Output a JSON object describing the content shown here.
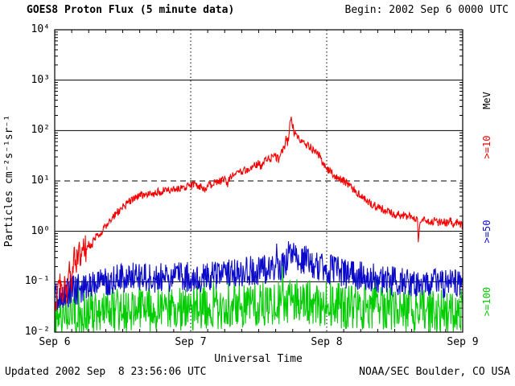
{
  "header": {
    "title": "GOES8 Proton Flux (5 minute data)",
    "begin_label": "Begin: 2002 Sep 6 0000 UTC"
  },
  "axes": {
    "y_label": "Particles cm⁻²s⁻¹sr⁻¹",
    "x_label": "Universal Time",
    "right_unit": "MeV",
    "y_ticks": [
      "10⁴",
      "10³",
      "10²",
      "10¹",
      "10⁰",
      "10⁻¹",
      "10⁻²"
    ],
    "x_ticks": [
      "Sep 6",
      "Sep 7",
      "Sep 8",
      "Sep 9"
    ]
  },
  "right_labels": [
    {
      "text": ">=10",
      "color": "#f40000"
    },
    {
      "text": ">=50",
      "color": "#0a0ac8"
    },
    {
      "text": ">=100",
      "color": "#00cc00"
    }
  ],
  "footer": {
    "updated": "Updated 2002 Sep  8 23:56:06 UTC",
    "credit": "NOAA/SEC Boulder, CO USA"
  },
  "chart_data": {
    "type": "line",
    "title": "GOES8 Proton Flux (5 minute data)",
    "xlabel": "Universal Time",
    "ylabel": "Particles cm⁻²s⁻¹sr⁻¹",
    "y_scale": "log",
    "ylim": [
      0.01,
      10000
    ],
    "x_range_hours": [
      0,
      72
    ],
    "x_start_label": "2002 Sep 6 0000 UTC",
    "x_tick_labels": [
      "Sep 6",
      "Sep 7",
      "Sep 8",
      "Sep 9"
    ],
    "x_minor_tick_hours": 3,
    "sample_minutes": 5,
    "threshold_line": 10,
    "grid": "solid horizontal line each decade, dashed line at 10, dotted vertical lines at day boundaries",
    "legend_position": "right, rotated 90deg",
    "series": [
      {
        "id": "ge10",
        "name": ">=10 MeV",
        "color": "#f40000",
        "noise": 0.08,
        "noise_early": 0.28,
        "noise_early_until": 5.5,
        "spike": 0,
        "anchors": [
          [
            0,
            0.03
          ],
          [
            0.5,
            0.05
          ],
          [
            1,
            0.09
          ],
          [
            1.4,
            0.04
          ],
          [
            1.8,
            0.12
          ],
          [
            2.2,
            0.06
          ],
          [
            2.6,
            0.25
          ],
          [
            3,
            0.12
          ],
          [
            3.4,
            0.35
          ],
          [
            3.8,
            0.2
          ],
          [
            4.2,
            0.45
          ],
          [
            4.6,
            0.3
          ],
          [
            5,
            0.55
          ],
          [
            5.5,
            0.45
          ],
          [
            6,
            0.6
          ],
          [
            6.5,
            0.5
          ],
          [
            7,
            0.7
          ],
          [
            8,
            0.9
          ],
          [
            9,
            1.3
          ],
          [
            10,
            1.8
          ],
          [
            11,
            2.4
          ],
          [
            12,
            3
          ],
          [
            13,
            3.8
          ],
          [
            14,
            4.5
          ],
          [
            15,
            5
          ],
          [
            16,
            5.5
          ],
          [
            17,
            5.2
          ],
          [
            18,
            6
          ],
          [
            19,
            6.2
          ],
          [
            20,
            6.5
          ],
          [
            21,
            7
          ],
          [
            22,
            7.4
          ],
          [
            23,
            7.8
          ],
          [
            24,
            8
          ],
          [
            25,
            8.2
          ],
          [
            26,
            7.8
          ],
          [
            26.5,
            6.5
          ],
          [
            27,
            8
          ],
          [
            28,
            9
          ],
          [
            29,
            9.5
          ],
          [
            30,
            11
          ],
          [
            30.5,
            9
          ],
          [
            31,
            12
          ],
          [
            32,
            13
          ],
          [
            33,
            16
          ],
          [
            34,
            17
          ],
          [
            35,
            19
          ],
          [
            36,
            22
          ],
          [
            36.5,
            19
          ],
          [
            37,
            24
          ],
          [
            38,
            28
          ],
          [
            39,
            30
          ],
          [
            39.5,
            27
          ],
          [
            40,
            35
          ],
          [
            40.5,
            45
          ],
          [
            40.8,
            70
          ],
          [
            41.1,
            55
          ],
          [
            41.4,
            100
          ],
          [
            41.7,
            200
          ],
          [
            42,
            130
          ],
          [
            42.3,
            85
          ],
          [
            42.6,
            95
          ],
          [
            43,
            70
          ],
          [
            43.5,
            62
          ],
          [
            44,
            55
          ],
          [
            44.5,
            52
          ],
          [
            45,
            48
          ],
          [
            45.5,
            42
          ],
          [
            46,
            40
          ],
          [
            46.5,
            35
          ],
          [
            47,
            28
          ],
          [
            47.5,
            22
          ],
          [
            48,
            17
          ],
          [
            49,
            14
          ],
          [
            50,
            12
          ],
          [
            51,
            10
          ],
          [
            52,
            8
          ],
          [
            53,
            6.5
          ],
          [
            54,
            5
          ],
          [
            55,
            4
          ],
          [
            56,
            3.4
          ],
          [
            57,
            3
          ],
          [
            58,
            2.7
          ],
          [
            59,
            2.4
          ],
          [
            60,
            2.2
          ],
          [
            61,
            2.1
          ],
          [
            62,
            2
          ],
          [
            63,
            1.9
          ],
          [
            64,
            1.8
          ],
          [
            64.2,
            0.55
          ],
          [
            64.5,
            1.7
          ],
          [
            65,
            1.8
          ],
          [
            66,
            1.6
          ],
          [
            67,
            1.6
          ],
          [
            68,
            1.5
          ],
          [
            69,
            1.5
          ],
          [
            70,
            1.6
          ],
          [
            70.5,
            1.2
          ],
          [
            71,
            1.5
          ],
          [
            72,
            1.3
          ]
        ]
      },
      {
        "id": "ge50",
        "name": ">=50 MeV",
        "color": "#0a0ac8",
        "noise": 0.3,
        "spike": 0.3,
        "anchors": [
          [
            0,
            0.05
          ],
          [
            1,
            0.05
          ],
          [
            2,
            0.06
          ],
          [
            3,
            0.065
          ],
          [
            4,
            0.07
          ],
          [
            5,
            0.08
          ],
          [
            6,
            0.09
          ],
          [
            8,
            0.1
          ],
          [
            10,
            0.11
          ],
          [
            12,
            0.12
          ],
          [
            14,
            0.12
          ],
          [
            16,
            0.12
          ],
          [
            18,
            0.12
          ],
          [
            20,
            0.12
          ],
          [
            22,
            0.13
          ],
          [
            24,
            0.12
          ],
          [
            26,
            0.12
          ],
          [
            28,
            0.13
          ],
          [
            30,
            0.14
          ],
          [
            32,
            0.15
          ],
          [
            34,
            0.16
          ],
          [
            36,
            0.17
          ],
          [
            38,
            0.18
          ],
          [
            40,
            0.2
          ],
          [
            41,
            0.25
          ],
          [
            41.7,
            0.38
          ],
          [
            42,
            0.42
          ],
          [
            42.5,
            0.35
          ],
          [
            43,
            0.3
          ],
          [
            44,
            0.28
          ],
          [
            45,
            0.25
          ],
          [
            46,
            0.22
          ],
          [
            47,
            0.2
          ],
          [
            48,
            0.18
          ],
          [
            50,
            0.16
          ],
          [
            52,
            0.14
          ],
          [
            54,
            0.13
          ],
          [
            56,
            0.12
          ],
          [
            58,
            0.11
          ],
          [
            60,
            0.1
          ],
          [
            62,
            0.1
          ],
          [
            64,
            0.09
          ],
          [
            66,
            0.09
          ],
          [
            68,
            0.09
          ],
          [
            70,
            0.09
          ],
          [
            72,
            0.1
          ]
        ]
      },
      {
        "id": "ge100",
        "name": ">=100 MeV",
        "color": "#00cc00",
        "noise": 0.45,
        "spike": 0.35,
        "anchors": [
          [
            0,
            0.022
          ],
          [
            4,
            0.024
          ],
          [
            8,
            0.026
          ],
          [
            12,
            0.028
          ],
          [
            16,
            0.028
          ],
          [
            20,
            0.03
          ],
          [
            24,
            0.03
          ],
          [
            28,
            0.03
          ],
          [
            32,
            0.032
          ],
          [
            36,
            0.034
          ],
          [
            40,
            0.038
          ],
          [
            42,
            0.045
          ],
          [
            44,
            0.04
          ],
          [
            48,
            0.036
          ],
          [
            52,
            0.032
          ],
          [
            56,
            0.03
          ],
          [
            60,
            0.028
          ],
          [
            64,
            0.026
          ],
          [
            68,
            0.025
          ],
          [
            72,
            0.025
          ]
        ]
      }
    ]
  }
}
